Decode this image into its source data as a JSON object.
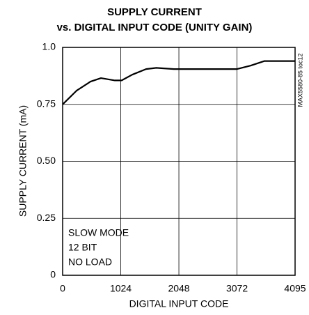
{
  "chart_data": {
    "type": "line",
    "title": [
      "SUPPLY CURRENT",
      "vs. DIGITAL INPUT CODE (UNITY GAIN)"
    ],
    "xlabel": "DIGITAL INPUT CODE",
    "ylabel": "SUPPLY CURRENT (mA)",
    "annotations": [
      "SLOW MODE",
      "12 BIT",
      "NO LOAD"
    ],
    "side_note": "MAX5580-85 toc12",
    "x": [
      0,
      245,
      490,
      675,
      920,
      1040,
      1225,
      1470,
      1650,
      1960,
      2575,
      3072,
      3310,
      3555,
      3800,
      4095
    ],
    "values": [
      0.75,
      0.81,
      0.85,
      0.865,
      0.855,
      0.855,
      0.88,
      0.905,
      0.91,
      0.905,
      0.905,
      0.905,
      0.92,
      0.94,
      0.94,
      0.94
    ],
    "color": "#000000",
    "xlim": [
      0,
      4095
    ],
    "xticks": [
      0,
      1024,
      2048,
      3072,
      4095
    ],
    "ylim": [
      0,
      1
    ],
    "yticks": [
      0,
      {
        "value": 0.25,
        "label": "0.25"
      },
      {
        "value": 0.5,
        "label": "0.50"
      },
      {
        "value": 0.75,
        "label": "0.75"
      },
      {
        "value": 1,
        "label": "1.0"
      }
    ],
    "grid": true
  }
}
